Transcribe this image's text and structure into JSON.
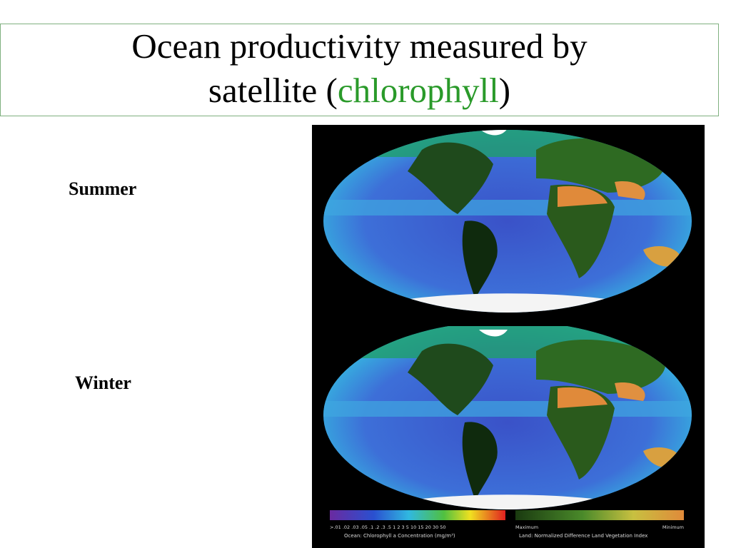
{
  "title": {
    "line1": "Ocean productivity measured by",
    "line2_before": "satellite (",
    "highlight": "chlorophyll",
    "line2_after": ")"
  },
  "labels": {
    "summer": "Summer",
    "winter": "Winter"
  },
  "legend": {
    "ocean_scale": ">.01 .02 .03 .05 .1 .2 .3 .5 1 2 3 5 10 15 20 30 50",
    "ocean_caption": "Ocean: Chlorophyll a Concentration (mg/m³)",
    "land_max": "Maximum",
    "land_min": "Minimum",
    "land_caption": "Land: Normalized Difference Land Vegetation Index"
  }
}
